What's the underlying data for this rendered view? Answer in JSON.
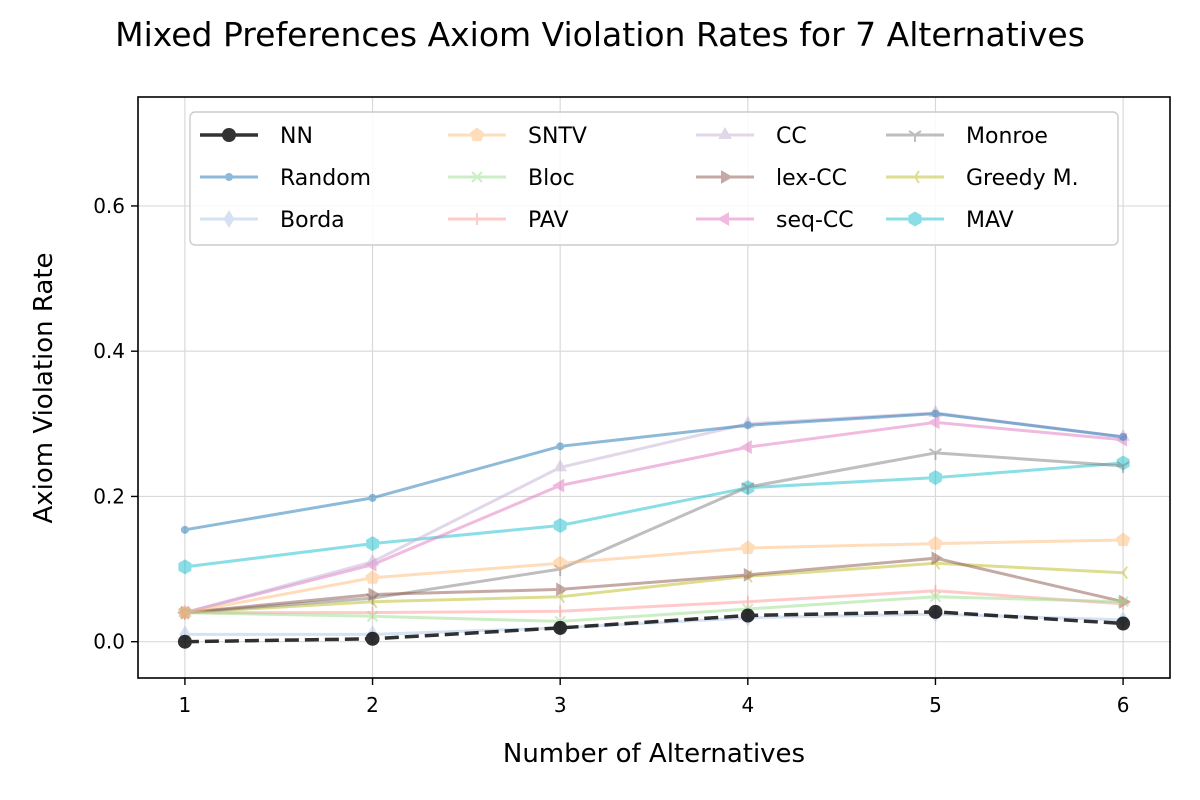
{
  "chart_data": {
    "type": "line",
    "title": "Mixed Preferences Axiom Violation Rates for 7 Alternatives",
    "xlabel": "Number of Alternatives",
    "ylabel": "Axiom Violation Rate",
    "x": [
      1,
      2,
      3,
      4,
      5,
      6
    ],
    "xlim": [
      0.75,
      6.25
    ],
    "ylim": [
      -0.05,
      0.75
    ],
    "yticks": [
      0.0,
      0.2,
      0.4,
      0.6
    ],
    "ytick_labels": [
      "0.0",
      "0.2",
      "0.4",
      "0.6"
    ],
    "xtick_labels": [
      "1",
      "2",
      "3",
      "4",
      "5",
      "6"
    ],
    "grid": true,
    "legend": {
      "placement": "top",
      "columns": 4
    },
    "series": [
      {
        "name": "NN",
        "color": "#000000",
        "marker": "circle",
        "values": [
          0.0,
          0.004,
          0.019,
          0.036,
          0.041,
          0.025
        ]
      },
      {
        "name": "Random",
        "color": "#1f77b4",
        "marker": "point",
        "values": [
          0.154,
          0.198,
          0.269,
          0.298,
          0.314,
          0.282
        ]
      },
      {
        "name": "Borda",
        "color": "#aec7e8",
        "marker": "thin-diamond",
        "values": [
          0.01,
          0.01,
          0.019,
          0.033,
          0.038,
          0.03
        ]
      },
      {
        "name": "SNTV",
        "color": "#ffbb78",
        "marker": "pentagon",
        "values": [
          0.04,
          0.088,
          0.108,
          0.129,
          0.135,
          0.14
        ]
      },
      {
        "name": "Bloc",
        "color": "#98df8a",
        "marker": "x",
        "values": [
          0.04,
          0.035,
          0.028,
          0.045,
          0.062,
          0.055
        ]
      },
      {
        "name": "PAV",
        "color": "#ff9896",
        "marker": "plus",
        "values": [
          0.04,
          0.04,
          0.042,
          0.055,
          0.07,
          0.052
        ]
      },
      {
        "name": "CC",
        "color": "#c5b0d5",
        "marker": "triangle-up",
        "values": [
          0.04,
          0.11,
          0.24,
          0.3,
          0.315,
          0.282
        ]
      },
      {
        "name": "lex-CC",
        "color": "#8c564b",
        "marker": "triangle-right",
        "values": [
          0.04,
          0.065,
          0.072,
          0.092,
          0.115,
          0.055
        ]
      },
      {
        "name": "seq-CC",
        "color": "#e377c2",
        "marker": "triangle-left",
        "values": [
          0.04,
          0.106,
          0.215,
          0.268,
          0.302,
          0.278
        ]
      },
      {
        "name": "Monroe",
        "color": "#7f7f7f",
        "marker": "tri-down",
        "values": [
          0.04,
          0.06,
          0.1,
          0.213,
          0.26,
          0.242
        ]
      },
      {
        "name": "Greedy M.",
        "color": "#bcbd22",
        "marker": "tri-left",
        "values": [
          0.04,
          0.055,
          0.062,
          0.09,
          0.108,
          0.095
        ]
      },
      {
        "name": "MAV",
        "color": "#17becf",
        "marker": "hexagon",
        "values": [
          0.103,
          0.135,
          0.16,
          0.212,
          0.226,
          0.246
        ]
      }
    ]
  }
}
